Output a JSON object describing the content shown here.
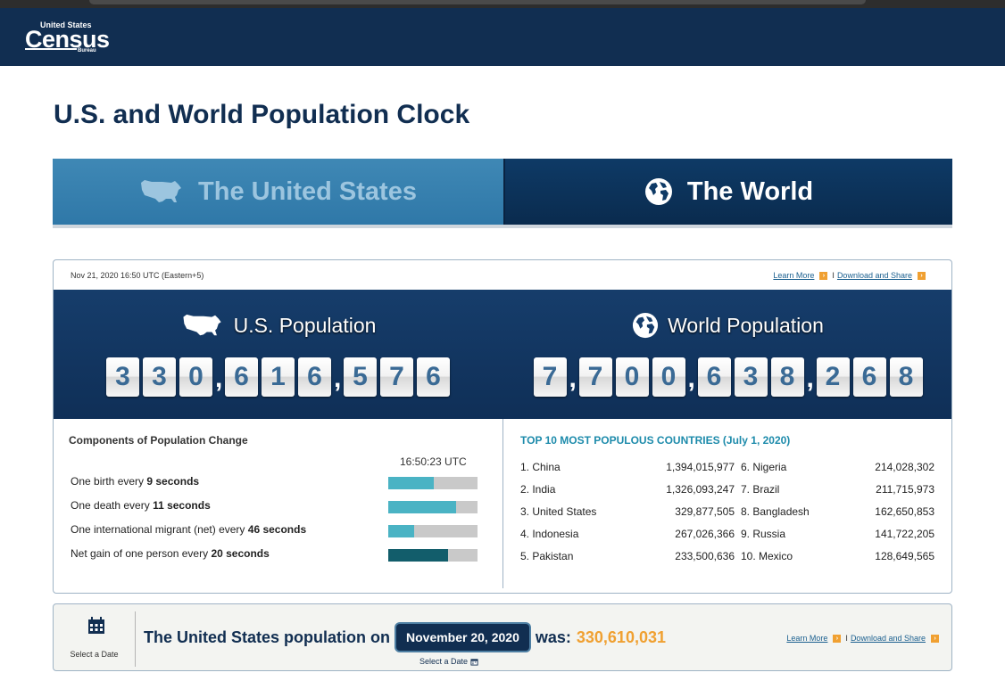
{
  "header": {
    "logo_top": "United States",
    "logo_main": "Census",
    "logo_bottom": "Bureau"
  },
  "page": {
    "title": "U.S. and World Population Clock"
  },
  "tabs": [
    {
      "label": "The United States",
      "icon": "us-map-icon",
      "active": false
    },
    {
      "label": "The World",
      "icon": "globe-icon",
      "active": true
    }
  ],
  "panel": {
    "date_stamp": "Nov 21, 2020 16:50 UTC (Eastern+5)",
    "learn_more": "Learn More",
    "download_share": "Download and Share",
    "separator": "I"
  },
  "us_population": {
    "title": "U.S. Population",
    "digits": [
      "3",
      "3",
      "0",
      ",",
      "6",
      "1",
      "6",
      ",",
      "5",
      "7",
      "6"
    ]
  },
  "world_population": {
    "title": "World Population",
    "digits": [
      "7",
      ",",
      "7",
      "0",
      "0",
      ",",
      "6",
      "3",
      "8",
      ",",
      "2",
      "6",
      "8"
    ]
  },
  "components": {
    "title": "Components of Population Change",
    "time": "16:50:23 UTC",
    "rows": [
      {
        "prefix": "One birth every ",
        "bold": "9 seconds",
        "fill": 0.51,
        "color": "#4ab3c4"
      },
      {
        "prefix": "One death every ",
        "bold": "11 seconds",
        "fill": 0.76,
        "color": "#4ab3c4"
      },
      {
        "prefix": "One international migrant (net) every ",
        "bold": "46 seconds",
        "fill": 0.29,
        "color": "#4ab3c4"
      },
      {
        "prefix": "Net gain of one person every ",
        "bold": "20 seconds",
        "fill": 0.67,
        "color": "#125d6b"
      }
    ]
  },
  "top10": {
    "title": "TOP 10 MOST POPULOUS COUNTRIES (July 1, 2020)",
    "rows": [
      {
        "left_name": "1. China",
        "left_value": "1,394,015,977",
        "right_name": "6. Nigeria",
        "right_value": "214,028,302"
      },
      {
        "left_name": "2. India",
        "left_value": "1,326,093,247",
        "right_name": "7. Brazil",
        "right_value": "211,715,973"
      },
      {
        "left_name": "3. United States",
        "left_value": "329,877,505",
        "right_name": "8. Bangladesh",
        "right_value": "162,650,853"
      },
      {
        "left_name": "4. Indonesia",
        "left_value": "267,026,366",
        "right_name": "9. Russia",
        "right_value": "141,722,205"
      },
      {
        "left_name": "5. Pakistan",
        "left_value": "233,500,636",
        "right_name": "10. Mexico",
        "right_value": "128,649,565"
      }
    ]
  },
  "history": {
    "calendar_label": "Select a Date",
    "prefix": "The United States population on",
    "date": "November 20, 2020",
    "was": "was:",
    "value": "330,610,031",
    "select_date_small": "Select a Date",
    "learn_more": "Learn More",
    "download_share": "Download and Share",
    "separator": "I"
  },
  "colors": {
    "brand_navy": "#112e51",
    "accent_orange": "#f0a031",
    "accent_teal": "#1d8bab"
  }
}
